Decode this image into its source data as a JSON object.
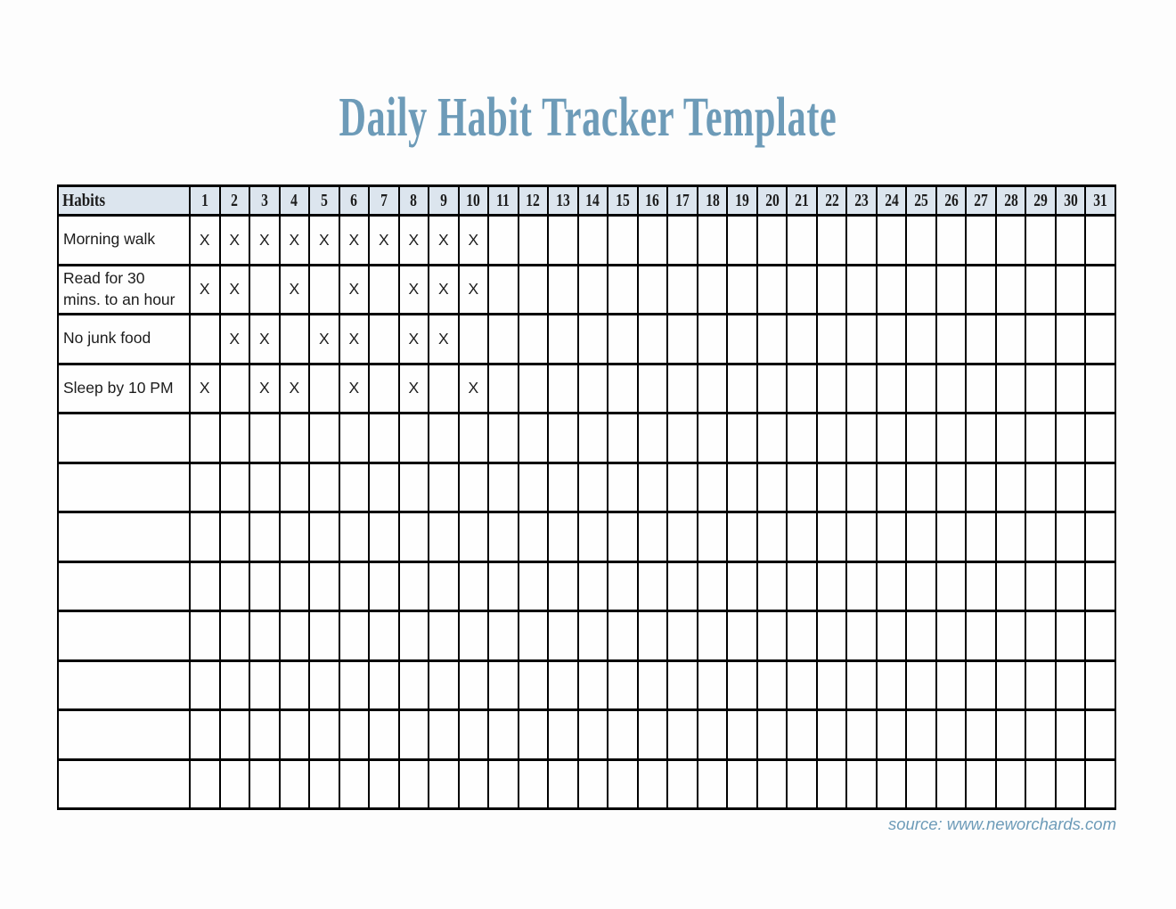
{
  "page": {
    "background": "#fdfdfd",
    "accent_blue": "#6d9bb8",
    "header_bg": "#dce5ee",
    "grid_color": "#000000"
  },
  "title": {
    "text": "Daily Habit Tracker Template"
  },
  "table": {
    "mark": "X",
    "header": {
      "habits_label": "Habits",
      "days": [
        "1",
        "2",
        "3",
        "4",
        "5",
        "6",
        "7",
        "8",
        "9",
        "10",
        "11",
        "12",
        "13",
        "14",
        "15",
        "16",
        "17",
        "18",
        "19",
        "20",
        "21",
        "22",
        "23",
        "24",
        "25",
        "26",
        "27",
        "28",
        "29",
        "30",
        "31"
      ]
    },
    "rows": [
      {
        "habit": "Morning walk",
        "marked_days": [
          1,
          2,
          3,
          4,
          5,
          6,
          7,
          8,
          9,
          10
        ]
      },
      {
        "habit": "Read for 30 mins. to an hour",
        "marked_days": [
          1,
          2,
          4,
          6,
          8,
          9,
          10
        ]
      },
      {
        "habit": "No junk food",
        "marked_days": [
          2,
          3,
          5,
          6,
          8,
          9
        ]
      },
      {
        "habit": "Sleep by 10 PM",
        "marked_days": [
          1,
          3,
          4,
          6,
          8,
          10
        ]
      },
      {
        "habit": "",
        "marked_days": []
      },
      {
        "habit": "",
        "marked_days": []
      },
      {
        "habit": "",
        "marked_days": []
      },
      {
        "habit": "",
        "marked_days": []
      },
      {
        "habit": "",
        "marked_days": []
      },
      {
        "habit": "",
        "marked_days": []
      },
      {
        "habit": "",
        "marked_days": []
      },
      {
        "habit": "",
        "marked_days": []
      }
    ]
  },
  "footer": {
    "source_text": "source: www.neworchards.com"
  }
}
